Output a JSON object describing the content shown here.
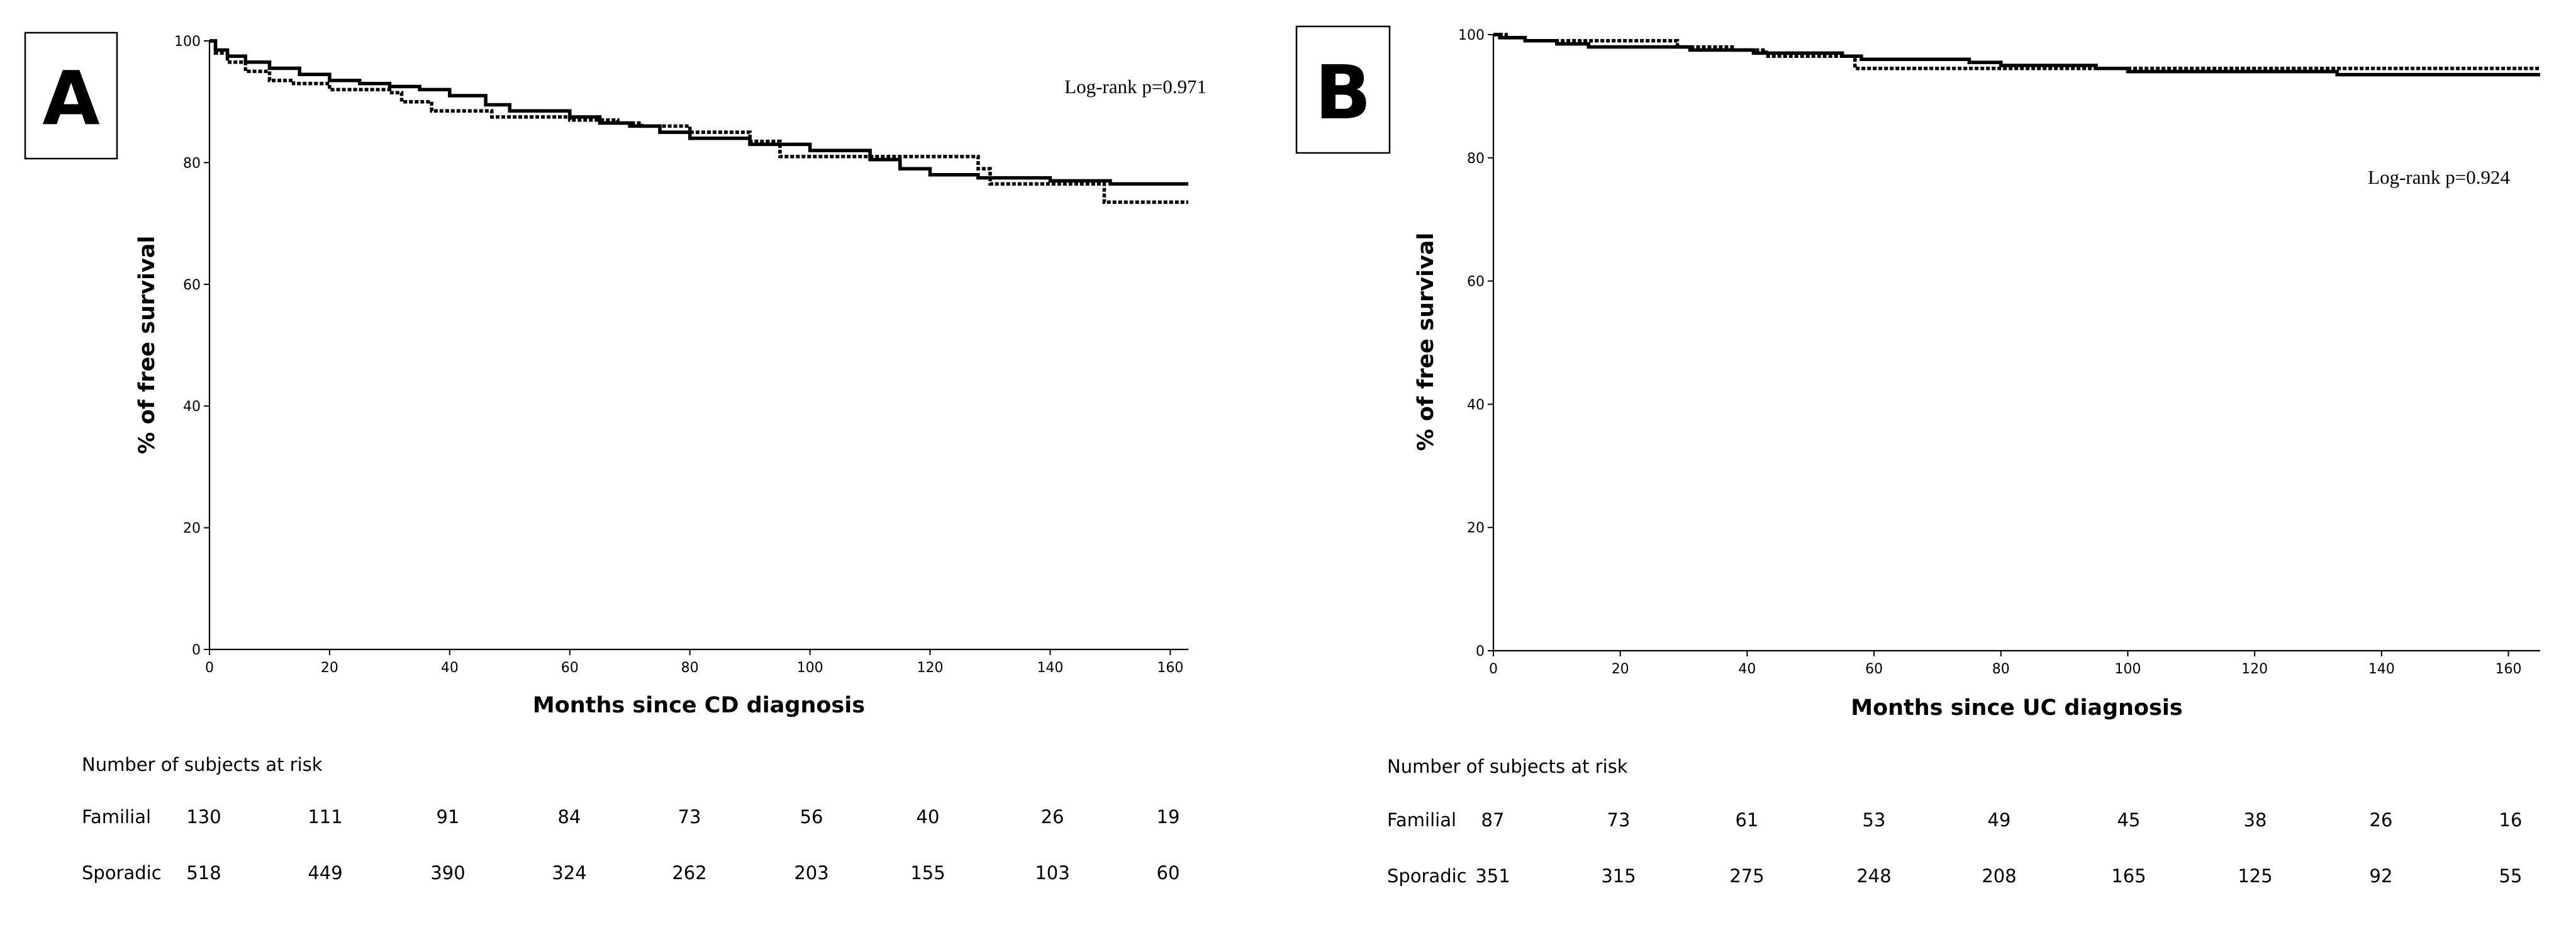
{
  "chart_data": [
    {
      "panel": "A",
      "type": "line",
      "step": true,
      "xlabel": "Months since CD diagnosis",
      "ylabel": "% of free survival",
      "xlim": [
        0,
        163
      ],
      "ylim": [
        0,
        100
      ],
      "x_ticks": [
        0,
        20,
        40,
        60,
        80,
        100,
        120,
        140,
        160
      ],
      "y_ticks": [
        0,
        20,
        40,
        60,
        80,
        100
      ],
      "x_tick_labels": [
        "0",
        "20",
        "40",
        "60",
        "80",
        "100",
        "120",
        "140",
        "160"
      ],
      "y_tick_labels": [
        "0",
        "20",
        "40",
        "60",
        "80",
        "100"
      ],
      "annotation": "Log-rank p=0.971",
      "series": [
        {
          "name": "Familial",
          "style": "dotted",
          "points": [
            [
              0,
              100
            ],
            [
              1,
              98
            ],
            [
              3,
              96.5
            ],
            [
              6,
              95
            ],
            [
              10,
              93.5
            ],
            [
              14,
              93
            ],
            [
              20,
              92
            ],
            [
              30,
              91.5
            ],
            [
              32,
              90
            ],
            [
              37,
              88.5
            ],
            [
              47,
              87.5
            ],
            [
              60,
              87
            ],
            [
              68,
              86.5
            ],
            [
              72,
              86
            ],
            [
              80,
              85
            ],
            [
              90,
              83.5
            ],
            [
              95,
              81
            ],
            [
              100,
              81
            ],
            [
              112,
              81
            ],
            [
              127,
              81
            ],
            [
              128,
              79
            ],
            [
              130,
              76.5
            ],
            [
              140,
              76.5
            ],
            [
              148,
              76.5
            ],
            [
              149,
              73.5
            ],
            [
              163,
              73.5
            ]
          ]
        },
        {
          "name": "Sporadic",
          "style": "solid",
          "points": [
            [
              0,
              100
            ],
            [
              1,
              98.5
            ],
            [
              3,
              97.5
            ],
            [
              6,
              96.5
            ],
            [
              10,
              95.5
            ],
            [
              15,
              94.5
            ],
            [
              20,
              93.5
            ],
            [
              25,
              93
            ],
            [
              30,
              92.5
            ],
            [
              35,
              92
            ],
            [
              40,
              91
            ],
            [
              46,
              89.5
            ],
            [
              50,
              88.5
            ],
            [
              60,
              87.5
            ],
            [
              65,
              86.5
            ],
            [
              70,
              86
            ],
            [
              75,
              85
            ],
            [
              80,
              84
            ],
            [
              90,
              83
            ],
            [
              100,
              82
            ],
            [
              110,
              80.5
            ],
            [
              115,
              79
            ],
            [
              120,
              78
            ],
            [
              128,
              77.5
            ],
            [
              140,
              77
            ],
            [
              150,
              76.5
            ],
            [
              163,
              76.5
            ]
          ]
        }
      ],
      "risk_table": {
        "title": "Number of subjects at risk",
        "rows": [
          {
            "label": "Familial",
            "values": [
              "130",
              "111",
              "91",
              "84",
              "73",
              "56",
              "40",
              "26",
              "19"
            ]
          },
          {
            "label": "Sporadic",
            "values": [
              "518",
              "449",
              "390",
              "324",
              "262",
              "203",
              "155",
              "103",
              "60"
            ]
          }
        ]
      }
    },
    {
      "panel": "B",
      "type": "line",
      "step": true,
      "xlabel": "Months since UC diagnosis",
      "ylabel": "% of free survival",
      "xlim": [
        0,
        165
      ],
      "ylim": [
        0,
        100
      ],
      "x_ticks": [
        0,
        20,
        40,
        60,
        80,
        100,
        120,
        140,
        160
      ],
      "y_ticks": [
        0,
        20,
        40,
        60,
        80,
        100
      ],
      "x_tick_labels": [
        "0",
        "20",
        "40",
        "60",
        "80",
        "100",
        "120",
        "140",
        "160"
      ],
      "y_tick_labels": [
        "0",
        "20",
        "40",
        "60",
        "80",
        "100"
      ],
      "annotation": "Log-rank p=0.924",
      "series": [
        {
          "name": "Familial",
          "style": "dotted",
          "points": [
            [
              0,
              100
            ],
            [
              2,
              99.5
            ],
            [
              5,
              99
            ],
            [
              28,
              99
            ],
            [
              29,
              98
            ],
            [
              37,
              98
            ],
            [
              38,
              97.5
            ],
            [
              42,
              97.5
            ],
            [
              43,
              96.5
            ],
            [
              56,
              96.5
            ],
            [
              57,
              94.5
            ],
            [
              165,
              94.5
            ]
          ]
        },
        {
          "name": "Sporadic",
          "style": "solid",
          "points": [
            [
              0,
              100
            ],
            [
              1,
              99.5
            ],
            [
              5,
              99
            ],
            [
              10,
              98.5
            ],
            [
              15,
              98
            ],
            [
              30,
              98
            ],
            [
              31,
              97.5
            ],
            [
              40,
              97.5
            ],
            [
              41,
              97
            ],
            [
              50,
              97
            ],
            [
              55,
              96.5
            ],
            [
              58,
              96
            ],
            [
              65,
              96
            ],
            [
              75,
              95.5
            ],
            [
              80,
              95
            ],
            [
              95,
              94.5
            ],
            [
              100,
              94
            ],
            [
              132,
              94
            ],
            [
              133,
              93.5
            ],
            [
              165,
              93.5
            ]
          ]
        }
      ],
      "risk_table": {
        "title": "Number of subjects at risk",
        "rows": [
          {
            "label": "Familial",
            "values": [
              "87",
              "73",
              "61",
              "53",
              "49",
              "45",
              "38",
              "26",
              "16"
            ]
          },
          {
            "label": "Sporadic",
            "values": [
              "351",
              "315",
              "275",
              "248",
              "208",
              "165",
              "125",
              "92",
              "55"
            ]
          }
        ]
      }
    }
  ]
}
